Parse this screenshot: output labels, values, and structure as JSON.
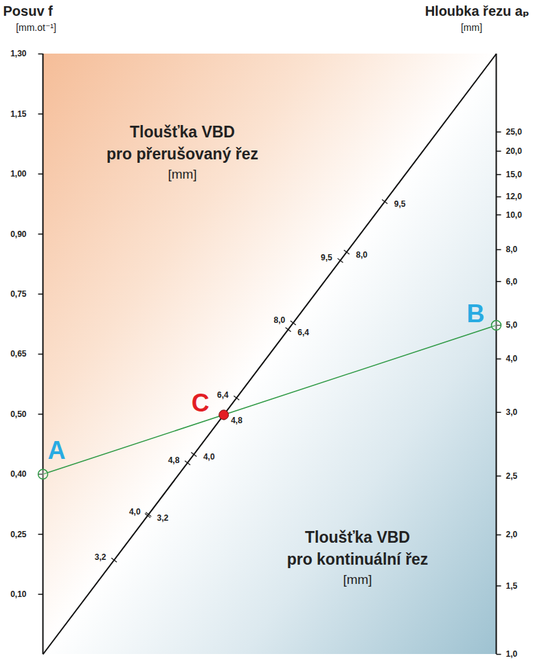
{
  "chart_data": {
    "type": "nomogram",
    "left_axis": {
      "title": "Posuv f",
      "unit": "[mm.ot⁻¹]",
      "ticks": [
        {
          "value": 1.3,
          "label": "1,30"
        },
        {
          "value": 1.15,
          "label": "1,15"
        },
        {
          "value": 1.0,
          "label": "1,00"
        },
        {
          "value": 0.9,
          "label": "0,90"
        },
        {
          "value": 0.75,
          "label": "0,75"
        },
        {
          "value": 0.65,
          "label": "0,65"
        },
        {
          "value": 0.5,
          "label": "0,50"
        },
        {
          "value": 0.4,
          "label": "0,40"
        },
        {
          "value": 0.25,
          "label": "0,25"
        },
        {
          "value": 0.1,
          "label": "0,10"
        }
      ]
    },
    "right_axis": {
      "title": "Hloubka řezu aₚ",
      "unit": "[mm]",
      "ticks": [
        {
          "value": 1.0,
          "label": "1,0"
        },
        {
          "value": 1.5,
          "label": "1,5"
        },
        {
          "value": 2.0,
          "label": "2,0"
        },
        {
          "value": 2.5,
          "label": "2,5"
        },
        {
          "value": 3.0,
          "label": "3,0"
        },
        {
          "value": 4.0,
          "label": "4,0"
        },
        {
          "value": 5.0,
          "label": "5,0"
        },
        {
          "value": 6.0,
          "label": "6,0"
        },
        {
          "value": 8.0,
          "label": "8,0"
        },
        {
          "value": 10.0,
          "label": "10,0"
        },
        {
          "value": 12.0,
          "label": "12,0"
        },
        {
          "value": 15.0,
          "label": "15,0"
        },
        {
          "value": 20.0,
          "label": "20,0"
        },
        {
          "value": 25.0,
          "label": "25,0"
        }
      ]
    },
    "diagonal": {
      "interrupted": {
        "title": [
          "Tloušťka VBD",
          "pro přerušovaný řez"
        ],
        "unit": "[mm]",
        "ticks": [
          {
            "value": 3.2,
            "label": "3,2"
          },
          {
            "value": 4.0,
            "label": "4,0"
          },
          {
            "value": 4.8,
            "label": "4,8"
          },
          {
            "value": 6.4,
            "label": "6,4"
          },
          {
            "value": 8.0,
            "label": "8,0"
          },
          {
            "value": 9.5,
            "label": "9,5"
          }
        ]
      },
      "continuous": {
        "title": [
          "Tloušťka VBD",
          "pro kontinuální řez"
        ],
        "unit": "[mm]",
        "ticks": [
          {
            "value": 3.2,
            "label": "3,2"
          },
          {
            "value": 4.0,
            "label": "4,0"
          },
          {
            "value": 4.8,
            "label": "4,8"
          },
          {
            "value": 6.4,
            "label": "6,4"
          },
          {
            "value": 8.0,
            "label": "8,0"
          },
          {
            "value": 9.5,
            "label": "9,5"
          }
        ]
      }
    },
    "points": [
      {
        "name": "A",
        "axis": "left",
        "value": 0.4,
        "color": "#29abe2"
      },
      {
        "name": "B",
        "axis": "right",
        "value": 5.0,
        "color": "#29abe2"
      },
      {
        "name": "C",
        "axis": "diagonal",
        "color": "#e31e24"
      }
    ]
  }
}
